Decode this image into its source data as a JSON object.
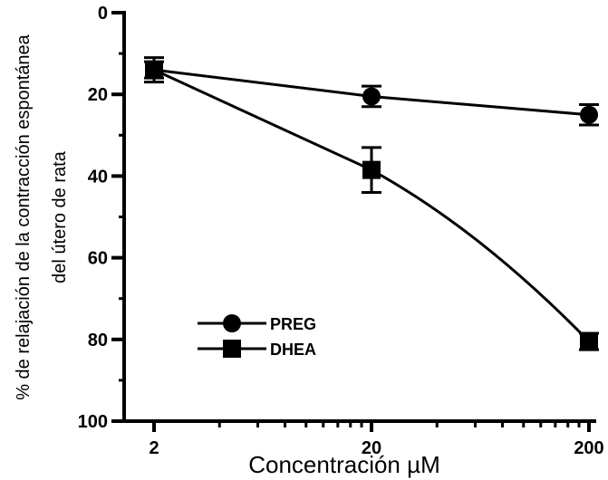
{
  "chart_data": {
    "type": "line",
    "xlabel": "Concentración µM",
    "ylabel_line1": "% de relajación de la contracción espontánea",
    "ylabel_line2": "del útero de rata",
    "x_scale": "log",
    "x_ticks": [
      2,
      20,
      200
    ],
    "x_tick_labels": [
      "2",
      "20",
      "200"
    ],
    "y_ticks": [
      0,
      20,
      40,
      60,
      80,
      100
    ],
    "y_tick_labels": [
      "0",
      "20",
      "40",
      "60",
      "80",
      "100"
    ],
    "ylim": [
      0,
      100
    ],
    "y_inverted": true,
    "legend_position": "lower-left",
    "series": [
      {
        "name": "PREG",
        "marker": "circle",
        "x": [
          2,
          20,
          200
        ],
        "values": [
          14,
          20.5,
          25
        ],
        "error": [
          2,
          2.5,
          2.5
        ]
      },
      {
        "name": "DHEA",
        "marker": "square",
        "x": [
          2,
          20,
          200
        ],
        "values": [
          14,
          38.5,
          80.5
        ],
        "error": [
          3,
          5.5,
          2
        ]
      }
    ]
  }
}
